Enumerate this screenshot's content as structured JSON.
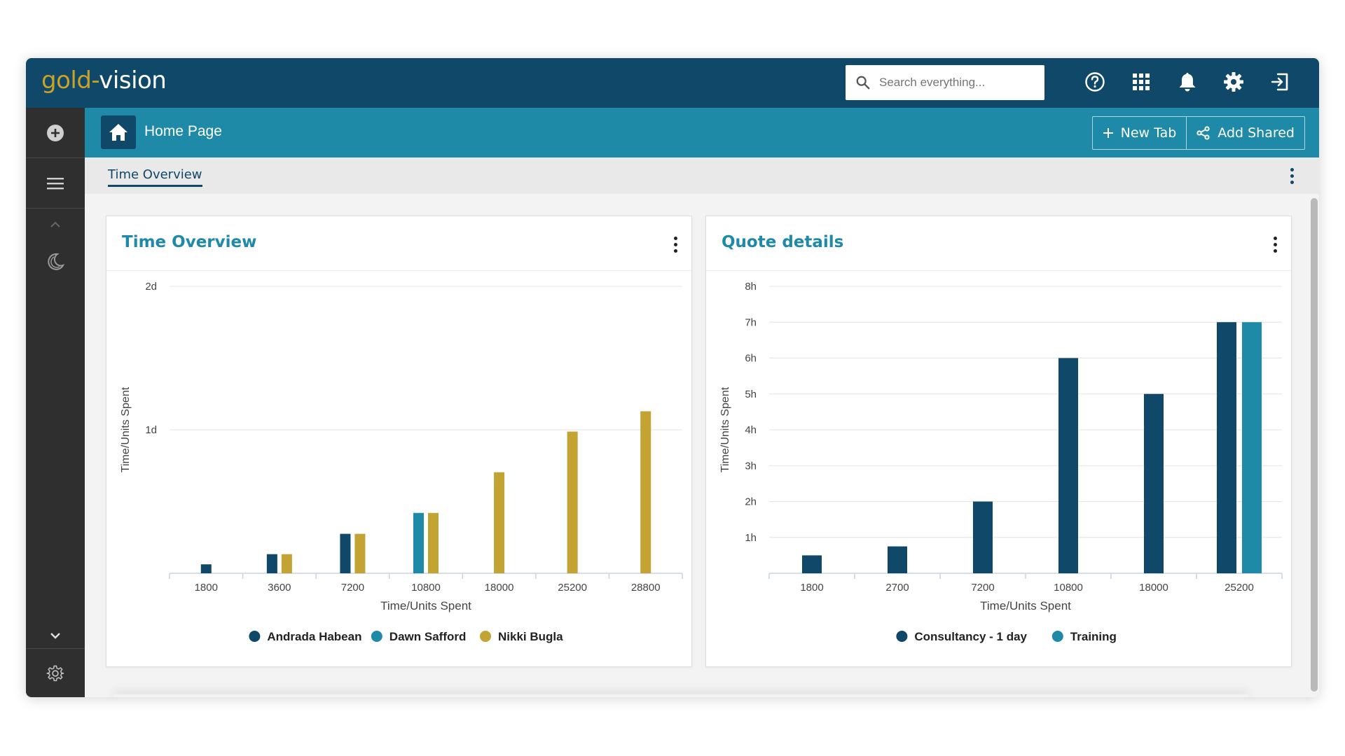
{
  "app": {
    "logo_gold": "gold",
    "logo_dash": "-",
    "logo_white": "vision",
    "search_placeholder": "Search everything...",
    "top_icons": [
      "help-icon",
      "apps-grid-icon",
      "bell-icon",
      "gear-icon",
      "sign-out-icon"
    ]
  },
  "sidebar": {
    "items": [
      "plus-circle-icon",
      "menu-icon",
      "chevron-up-icon",
      "moon-icon",
      "chevron-down-icon",
      "settings-icon",
      "double-chevron-right-icon"
    ]
  },
  "header": {
    "page_title": "Home Page",
    "new_tab_label": "New Tab",
    "add_shared_label": "Add Shared"
  },
  "tabs": [
    {
      "label": "Time Overview",
      "active": true
    }
  ],
  "colors": {
    "navy": "#0f4868",
    "teal": "#1e8aa8",
    "gold": "#c3a334"
  },
  "chart_data": [
    {
      "card_title": "Time Overview",
      "type": "bar",
      "xlabel": "Time/Units Spent",
      "ylabel": "Time/Units Spent",
      "categories": [
        "1800",
        "3600",
        "7200",
        "10800",
        "18000",
        "25200",
        "28800"
      ],
      "y_ticks": [
        "",
        "1d",
        "2d"
      ],
      "ylim": [
        0,
        48
      ],
      "grid": true,
      "legend": "bottom",
      "series": [
        {
          "name": "Andrada Habean",
          "color": "#0f4868",
          "values": [
            1.5,
            3.2,
            6.6,
            null,
            null,
            null,
            null
          ]
        },
        {
          "name": "Dawn Safford",
          "color": "#1e8aa8",
          "values": [
            null,
            null,
            null,
            10.1,
            null,
            null,
            null
          ]
        },
        {
          "name": "Nikki Bugla",
          "color": "#c3a334",
          "values": [
            null,
            3.2,
            6.6,
            10.1,
            16.9,
            23.7,
            27.1
          ]
        }
      ]
    },
    {
      "card_title": "Quote details",
      "type": "bar",
      "xlabel": "Time/Units Spent",
      "ylabel": "Time/Units Spent",
      "categories": [
        "1800",
        "2700",
        "7200",
        "10800",
        "18000",
        "25200"
      ],
      "y_ticks": [
        "",
        "1h",
        "2h",
        "3h",
        "4h",
        "5h",
        "6h",
        "7h",
        "8h"
      ],
      "ylim": [
        0,
        8
      ],
      "grid": true,
      "legend": "bottom",
      "series": [
        {
          "name": "Consultancy - 1 day",
          "color": "#0f4868",
          "values": [
            0.5,
            0.75,
            2,
            6,
            5,
            7
          ]
        },
        {
          "name": "Training",
          "color": "#1e8aa8",
          "values": [
            null,
            null,
            null,
            null,
            null,
            7
          ]
        }
      ]
    }
  ]
}
